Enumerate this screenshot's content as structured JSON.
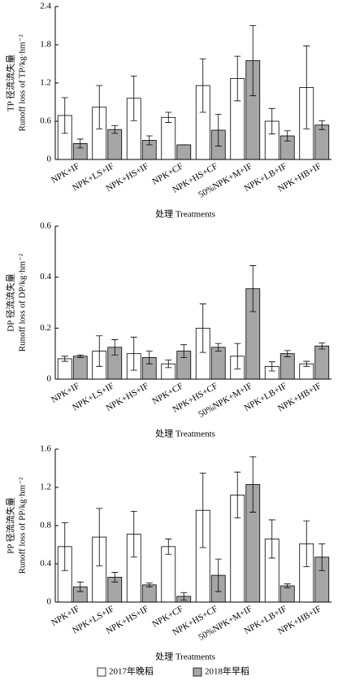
{
  "chart_data": [
    {
      "type": "bar",
      "ylabel": [
        "TP 径流流失量",
        "Runoff loss of TP/kg·hm⁻²"
      ],
      "xlabel": "处理 Treatments",
      "categories": [
        "NPK+IF",
        "NPK+LS+IF",
        "NPK+HS+IF",
        "NPK+CF",
        "NPK+HS+CF",
        "50%NPK+M+IF",
        "NPK+LB+IF",
        "NPK+HB+IF"
      ],
      "series": [
        {
          "color": "#ffffff",
          "values": [
            0.69,
            0.82,
            0.96,
            0.66,
            1.16,
            1.27,
            0.6,
            1.13
          ],
          "errors": [
            0.28,
            0.34,
            0.35,
            0.08,
            0.42,
            0.35,
            0.2,
            0.65
          ]
        },
        {
          "color": "#a6a6a6",
          "values": [
            0.25,
            0.47,
            0.3,
            0.23,
            0.46,
            1.55,
            0.37,
            0.54
          ],
          "errors": [
            0.07,
            0.06,
            0.07,
            0,
            0.25,
            0.55,
            0.08,
            0.07
          ]
        }
      ],
      "ylim": [
        0,
        2.4
      ],
      "yticks": [
        0,
        0.6,
        1.2,
        1.8,
        2.4
      ]
    },
    {
      "type": "bar",
      "ylabel": [
        "DP 径流流失量",
        "Runoff loss of DP/kg·hm⁻²"
      ],
      "xlabel": "处理 Treatments",
      "categories": [
        "NPK+IF",
        "NPK+LS+IF",
        "NPK+HS+IF",
        "NPK+CF",
        "NPK+HS+CF",
        "50%NPK+M+IF",
        "NPK+LB+IF",
        "NPK+HB+IF"
      ],
      "series": [
        {
          "color": "#ffffff",
          "values": [
            0.08,
            0.11,
            0.1,
            0.06,
            0.2,
            0.09,
            0.05,
            0.06
          ],
          "errors": [
            0.01,
            0.06,
            0.065,
            0.015,
            0.095,
            0.05,
            0.018,
            0.01
          ]
        },
        {
          "color": "#a6a6a6",
          "values": [
            0.09,
            0.125,
            0.085,
            0.11,
            0.125,
            0.355,
            0.1,
            0.13
          ],
          "errors": [
            0.005,
            0.03,
            0.025,
            0.025,
            0.015,
            0.09,
            0.012,
            0.012
          ]
        }
      ],
      "ylim": [
        0,
        0.6
      ],
      "yticks": [
        0,
        0.2,
        0.4,
        0.6
      ]
    },
    {
      "type": "bar",
      "ylabel": [
        "PP 径流流失量",
        "Runoff loss of PP/kg·hm⁻²"
      ],
      "xlabel": "处理 Treatments",
      "categories": [
        "NPK+IF",
        "NPK+LS+IF",
        "NPK+HS+IF",
        "NPK+CF",
        "NPK+HS+CF",
        "50%NPK+M+IF",
        "NPK+LB+IF",
        "NPK+HB+IF"
      ],
      "series": [
        {
          "name": "2017年晚稻",
          "color": "#ffffff",
          "values": [
            0.58,
            0.68,
            0.71,
            0.58,
            0.96,
            1.12,
            0.66,
            0.61
          ],
          "errors": [
            0.25,
            0.3,
            0.24,
            0.08,
            0.39,
            0.24,
            0.2,
            0.24
          ]
        },
        {
          "name": "2018年早稻",
          "color": "#a6a6a6",
          "values": [
            0.16,
            0.26,
            0.18,
            0.06,
            0.28,
            1.23,
            0.17,
            0.47
          ],
          "errors": [
            0.05,
            0.05,
            0.02,
            0.04,
            0.17,
            0.29,
            0.02,
            0.14
          ]
        }
      ],
      "ylim": [
        0,
        1.6
      ],
      "yticks": [
        0,
        0.4,
        0.8,
        1.2,
        1.6
      ],
      "legend": "bottom"
    }
  ]
}
